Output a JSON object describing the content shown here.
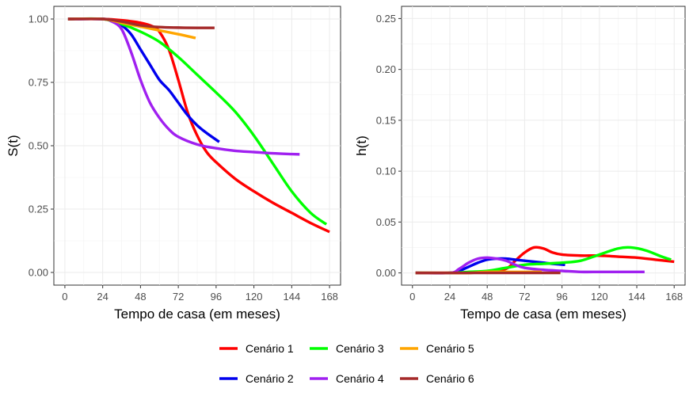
{
  "chart_data": [
    {
      "type": "line",
      "xlabel": "Tempo de casa (em meses)",
      "ylabel": "S(t)",
      "xlim": [
        -7,
        175
      ],
      "ylim": [
        -0.05,
        1.05
      ],
      "xticks": [
        0,
        24,
        48,
        72,
        96,
        120,
        144,
        168
      ],
      "yticks": [
        0.0,
        0.25,
        0.5,
        0.75,
        1.0
      ],
      "ytick_labels": [
        "0.00",
        "0.25",
        "0.50",
        "0.75",
        "1.00"
      ],
      "grid": true,
      "series": [
        {
          "name": "Cenário 1",
          "color": "#FF0000",
          "points": [
            [
              2,
              1.0
            ],
            [
              24,
              1.0
            ],
            [
              36,
              0.995
            ],
            [
              48,
              0.985
            ],
            [
              56,
              0.97
            ],
            [
              60,
              0.95
            ],
            [
              66,
              0.88
            ],
            [
              72,
              0.76
            ],
            [
              78,
              0.63
            ],
            [
              84,
              0.54
            ],
            [
              90,
              0.475
            ],
            [
              96,
              0.435
            ],
            [
              108,
              0.37
            ],
            [
              120,
              0.32
            ],
            [
              132,
              0.275
            ],
            [
              144,
              0.235
            ],
            [
              156,
              0.195
            ],
            [
              168,
              0.16
            ]
          ]
        },
        {
          "name": "Cenário 2",
          "color": "#0000EE",
          "points": [
            [
              2,
              1.0
            ],
            [
              24,
              1.0
            ],
            [
              30,
              0.99
            ],
            [
              36,
              0.975
            ],
            [
              42,
              0.94
            ],
            [
              48,
              0.88
            ],
            [
              54,
              0.82
            ],
            [
              60,
              0.76
            ],
            [
              66,
              0.72
            ],
            [
              72,
              0.67
            ],
            [
              78,
              0.62
            ],
            [
              84,
              0.58
            ],
            [
              90,
              0.55
            ],
            [
              98,
              0.515
            ]
          ]
        },
        {
          "name": "Cenário 3",
          "color": "#00FF00",
          "points": [
            [
              2,
              1.0
            ],
            [
              24,
              1.0
            ],
            [
              36,
              0.98
            ],
            [
              48,
              0.95
            ],
            [
              60,
              0.91
            ],
            [
              72,
              0.85
            ],
            [
              84,
              0.78
            ],
            [
              96,
              0.71
            ],
            [
              108,
              0.635
            ],
            [
              120,
              0.54
            ],
            [
              132,
              0.43
            ],
            [
              144,
              0.32
            ],
            [
              156,
              0.235
            ],
            [
              166,
              0.19
            ]
          ]
        },
        {
          "name": "Cenário 4",
          "color": "#A020F0",
          "points": [
            [
              2,
              1.0
            ],
            [
              24,
              1.0
            ],
            [
              30,
              0.99
            ],
            [
              36,
              0.96
            ],
            [
              42,
              0.87
            ],
            [
              48,
              0.76
            ],
            [
              54,
              0.67
            ],
            [
              60,
              0.61
            ],
            [
              66,
              0.565
            ],
            [
              72,
              0.535
            ],
            [
              84,
              0.505
            ],
            [
              96,
              0.49
            ],
            [
              108,
              0.48
            ],
            [
              120,
              0.475
            ],
            [
              132,
              0.47
            ],
            [
              144,
              0.467
            ],
            [
              149,
              0.466
            ]
          ]
        },
        {
          "name": "Cenário 5",
          "color": "#FFA500",
          "points": [
            [
              2,
              1.0
            ],
            [
              24,
              1.0
            ],
            [
              36,
              0.985
            ],
            [
              48,
              0.97
            ],
            [
              60,
              0.955
            ],
            [
              72,
              0.94
            ],
            [
              83,
              0.925
            ]
          ]
        },
        {
          "name": "Cenário 6",
          "color": "#A52A2A",
          "points": [
            [
              2,
              1.0
            ],
            [
              24,
              1.0
            ],
            [
              36,
              0.99
            ],
            [
              48,
              0.975
            ],
            [
              60,
              0.968
            ],
            [
              72,
              0.966
            ],
            [
              84,
              0.965
            ],
            [
              95,
              0.965
            ]
          ]
        }
      ]
    },
    {
      "type": "line",
      "xlabel": "Tempo de casa (em meses)",
      "ylabel": "h(t)",
      "xlim": [
        -7,
        175
      ],
      "ylim": [
        -0.012,
        0.262
      ],
      "xticks": [
        0,
        24,
        48,
        72,
        96,
        120,
        144,
        168
      ],
      "yticks": [
        0.0,
        0.05,
        0.1,
        0.15,
        0.2,
        0.25
      ],
      "ytick_labels": [
        "0.00",
        "0.05",
        "0.10",
        "0.15",
        "0.20",
        "0.25"
      ],
      "grid": true,
      "series": [
        {
          "name": "Cenário 1",
          "color": "#FF0000",
          "points": [
            [
              2,
              0.0
            ],
            [
              24,
              0.0
            ],
            [
              36,
              0.0
            ],
            [
              48,
              0.001
            ],
            [
              60,
              0.004
            ],
            [
              66,
              0.012
            ],
            [
              72,
              0.02
            ],
            [
              78,
              0.025
            ],
            [
              84,
              0.024
            ],
            [
              90,
              0.02
            ],
            [
              96,
              0.018
            ],
            [
              108,
              0.017
            ],
            [
              120,
              0.017
            ],
            [
              132,
              0.016
            ],
            [
              144,
              0.015
            ],
            [
              156,
              0.013
            ],
            [
              168,
              0.011
            ]
          ]
        },
        {
          "name": "Cenário 2",
          "color": "#0000EE",
          "points": [
            [
              2,
              0.0
            ],
            [
              24,
              0.0
            ],
            [
              30,
              0.002
            ],
            [
              36,
              0.006
            ],
            [
              42,
              0.01
            ],
            [
              48,
              0.013
            ],
            [
              54,
              0.014
            ],
            [
              60,
              0.014
            ],
            [
              66,
              0.013
            ],
            [
              72,
              0.012
            ],
            [
              78,
              0.011
            ],
            [
              84,
              0.01
            ],
            [
              90,
              0.009
            ],
            [
              98,
              0.008
            ]
          ]
        },
        {
          "name": "Cenário 3",
          "color": "#00FF00",
          "points": [
            [
              2,
              0.0
            ],
            [
              24,
              0.0
            ],
            [
              36,
              0.001
            ],
            [
              48,
              0.002
            ],
            [
              60,
              0.005
            ],
            [
              72,
              0.008
            ],
            [
              84,
              0.009
            ],
            [
              96,
              0.01
            ],
            [
              108,
              0.012
            ],
            [
              120,
              0.018
            ],
            [
              132,
              0.024
            ],
            [
              140,
              0.025
            ],
            [
              150,
              0.022
            ],
            [
              160,
              0.016
            ],
            [
              166,
              0.013
            ]
          ]
        },
        {
          "name": "Cenário 4",
          "color": "#A020F0",
          "points": [
            [
              2,
              0.0
            ],
            [
              24,
              0.0
            ],
            [
              30,
              0.004
            ],
            [
              36,
              0.01
            ],
            [
              42,
              0.014
            ],
            [
              48,
              0.015
            ],
            [
              54,
              0.014
            ],
            [
              60,
              0.012
            ],
            [
              66,
              0.008
            ],
            [
              72,
              0.005
            ],
            [
              84,
              0.003
            ],
            [
              96,
              0.002
            ],
            [
              108,
              0.001
            ],
            [
              120,
              0.001
            ],
            [
              132,
              0.001
            ],
            [
              144,
              0.001
            ],
            [
              149,
              0.001
            ]
          ]
        },
        {
          "name": "Cenário 5",
          "color": "#FFA500",
          "points": [
            [
              2,
              0.0
            ],
            [
              24,
              0.0
            ],
            [
              36,
              0.0
            ],
            [
              48,
              0.001
            ],
            [
              60,
              0.001
            ],
            [
              72,
              0.001
            ],
            [
              83,
              0.001
            ]
          ]
        },
        {
          "name": "Cenário 6",
          "color": "#A52A2A",
          "points": [
            [
              2,
              0.0
            ],
            [
              24,
              0.0
            ],
            [
              48,
              0.0
            ],
            [
              72,
              0.0
            ],
            [
              95,
              0.0
            ]
          ]
        }
      ]
    }
  ],
  "legend": {
    "placement": "bottom",
    "items": [
      {
        "label": "Cenário 1",
        "color": "#FF0000"
      },
      {
        "label": "Cenário 3",
        "color": "#00FF00"
      },
      {
        "label": "Cenário 5",
        "color": "#FFA500"
      },
      {
        "label": "Cenário 2",
        "color": "#0000EE"
      },
      {
        "label": "Cenário 4",
        "color": "#A020F0"
      },
      {
        "label": "Cenário 6",
        "color": "#A52A2A"
      }
    ]
  }
}
